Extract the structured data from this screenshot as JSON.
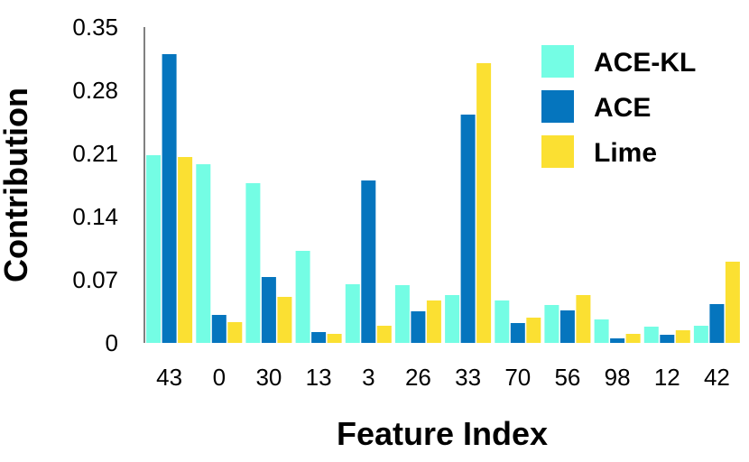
{
  "chart_data": {
    "type": "bar",
    "title": "",
    "xlabel": "Feature Index",
    "ylabel": "Contribution",
    "ylim": [
      0,
      0.35
    ],
    "yticks": [
      "0",
      "0.07",
      "0.14",
      "0.21",
      "0.28",
      "0.35"
    ],
    "categories": [
      "43",
      "0",
      "30",
      "13",
      "3",
      "26",
      "33",
      "70",
      "56",
      "98",
      "12",
      "42"
    ],
    "series": [
      {
        "name": "ACE-KL",
        "color": "#74FDE4",
        "values": [
          0.208,
          0.198,
          0.177,
          0.102,
          0.065,
          0.064,
          0.053,
          0.047,
          0.042,
          0.026,
          0.018,
          0.019
        ]
      },
      {
        "name": "ACE",
        "color": "#0575BE",
        "values": [
          0.32,
          0.031,
          0.073,
          0.012,
          0.18,
          0.035,
          0.253,
          0.022,
          0.036,
          0.005,
          0.009,
          0.043
        ]
      },
      {
        "name": "Lime",
        "color": "#FBE032",
        "values": [
          0.206,
          0.023,
          0.051,
          0.01,
          0.019,
          0.047,
          0.31,
          0.028,
          0.053,
          0.01,
          0.014,
          0.09
        ]
      }
    ],
    "grid": false,
    "legend_position": "top-right"
  }
}
